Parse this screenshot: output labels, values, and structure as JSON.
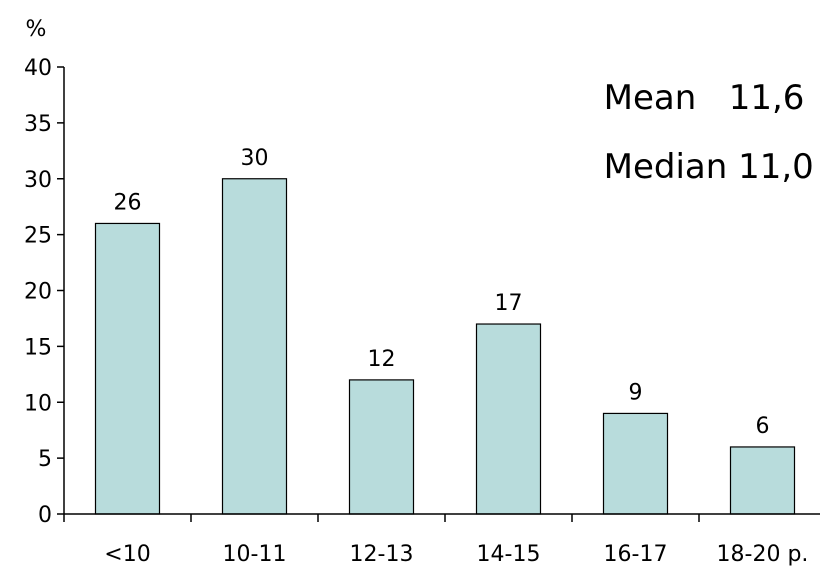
{
  "chart_data": {
    "type": "bar",
    "categories": [
      "<10",
      "10-11",
      "12-13",
      "14-15",
      "16-17",
      "18-20 р."
    ],
    "values": [
      26,
      30,
      12,
      17,
      9,
      6
    ],
    "data_labels": [
      "26",
      "30",
      "12",
      "17",
      "9",
      "6"
    ],
    "ylabel": "%",
    "xlabel": "",
    "ylim": [
      0,
      40
    ],
    "yticks": [
      0,
      5,
      10,
      15,
      20,
      25,
      30,
      35,
      40
    ],
    "grid": false,
    "bar_color": "#b8dcdc",
    "bar_edge_color": "#000000"
  },
  "stats": {
    "mean_label": "Mean",
    "mean_value": "11,6",
    "median_label": "Median",
    "median_value": "11,0"
  }
}
